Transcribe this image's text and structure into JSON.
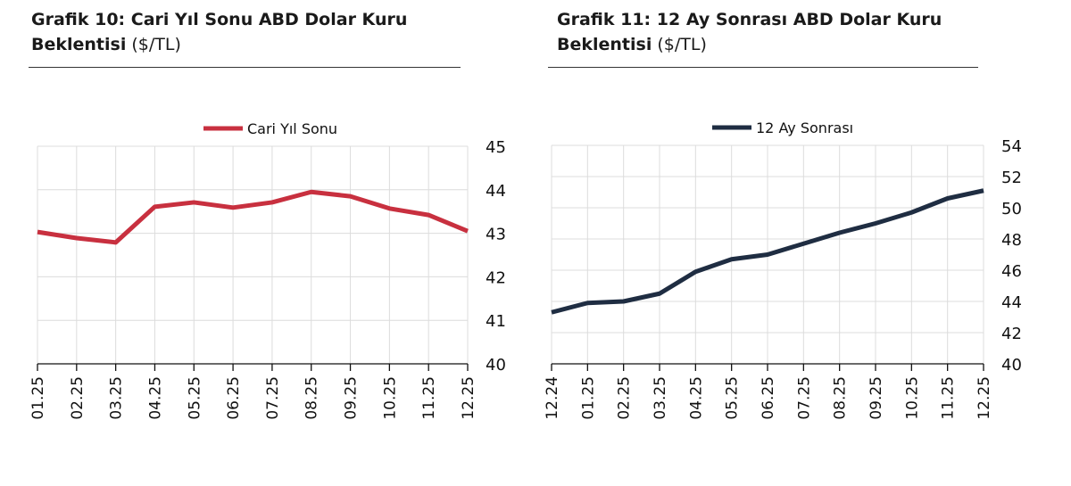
{
  "charts_titles": [
    {
      "bold": "Grafik 10: Cari Yıl Sonu ABD Dolar Kuru",
      "bold2": "Beklentisi",
      "normal": " ($/TL)"
    },
    {
      "bold": "Grafik 11: 12 Ay Sonrası ABD Dolar Kuru",
      "bold2": "Beklentisi",
      "normal": " ($/TL)"
    }
  ],
  "chart_data": [
    {
      "type": "line",
      "title": "Grafik 10: Cari Yıl Sonu ABD Dolar Kuru Beklentisi ($/TL)",
      "categories": [
        "01.25",
        "02.25",
        "03.25",
        "04.25",
        "05.25",
        "06.25",
        "07.25",
        "08.25",
        "09.25",
        "10.25",
        "11.25",
        "12.25"
      ],
      "series": [
        {
          "name": "Cari Yıl Sonu",
          "color": "#c8303f",
          "values": [
            43.03,
            42.89,
            42.79,
            43.61,
            43.71,
            43.59,
            43.71,
            43.95,
            43.85,
            43.57,
            43.42,
            43.05
          ]
        }
      ],
      "ylim": [
        40,
        45
      ],
      "yticks": [
        40,
        41,
        42,
        43,
        44,
        45
      ],
      "y_axis_side": "right",
      "grid": true,
      "legend": "top"
    },
    {
      "type": "line",
      "title": "Grafik 11: 12 Ay Sonrası ABD Dolar Kuru Beklentisi ($/TL)",
      "categories": [
        "12.24",
        "01.25",
        "02.25",
        "03.25",
        "04.25",
        "05.25",
        "06.25",
        "07.25",
        "08.25",
        "09.25",
        "10.25",
        "11.25",
        "12.25"
      ],
      "series": [
        {
          "name": "12 Ay Sonrası",
          "color": "#1f2d42",
          "values": [
            43.3,
            43.9,
            44.0,
            44.5,
            45.9,
            46.7,
            47.0,
            47.7,
            48.4,
            49.0,
            49.7,
            50.6,
            51.1
          ]
        }
      ],
      "ylim": [
        40,
        54
      ],
      "yticks": [
        40,
        42,
        44,
        46,
        48,
        50,
        52,
        54
      ],
      "y_axis_side": "right",
      "grid": true,
      "legend": "top"
    }
  ]
}
